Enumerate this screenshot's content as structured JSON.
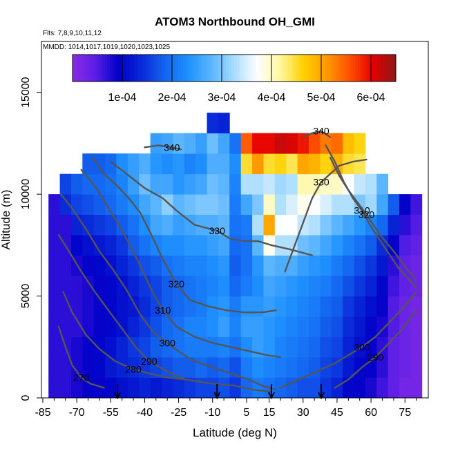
{
  "chart_data": {
    "type": "heatmap",
    "title": "ATOM3 Northbound OH_GMI",
    "subtitle_flights": "Flts: 7,8,9,10,11,12",
    "subtitle_dates": "MMDD: 1014,1017,1019,1020,1023,1025",
    "xlabel": "Latitude (deg N)",
    "ylabel": "Altitude (m)",
    "xlim": [
      -85,
      85
    ],
    "ylim": [
      0,
      17500
    ],
    "x_ticks": [
      -85,
      -70,
      -55,
      -40,
      -25,
      -10,
      5,
      15,
      30,
      45,
      60,
      75
    ],
    "y_ticks": [
      0,
      5000,
      10000,
      15000
    ],
    "colorbar": {
      "min": 0,
      "max": 0.00065,
      "ticks": [
        0.0001,
        0.0002,
        0.0003,
        0.0004,
        0.0005,
        0.0006
      ],
      "tick_labels": [
        "1e-04",
        "2e-04",
        "3e-04",
        "4e-04",
        "5e-04",
        "6e-04"
      ],
      "colors": [
        "#8a2be2",
        "#5a1ee6",
        "#0000c8",
        "#0a2ad8",
        "#1464f0",
        "#1e90ff",
        "#5ab4ff",
        "#a8dcff",
        "#ffffff",
        "#fff7a0",
        "#ffd000",
        "#ff9a00",
        "#ff5000",
        "#e60000",
        "#8b1a1a"
      ]
    },
    "heatmap": {
      "lat_bins": [
        -80,
        -75,
        -70,
        -65,
        -60,
        -55,
        -50,
        -45,
        -40,
        -35,
        -30,
        -25,
        -20,
        -15,
        -10,
        -5,
        0,
        5,
        10,
        15,
        20,
        25,
        30,
        35,
        40,
        45,
        50,
        55,
        60,
        65,
        70,
        75,
        80
      ],
      "alt_bins_km": [
        0.5,
        1.5,
        2.5,
        3.5,
        4.5,
        5.5,
        6.5,
        7.5,
        8.5,
        9.5,
        10.5,
        11.5,
        12.5,
        13.5
      ],
      "values_1e4": [
        [
          0.7,
          0.7,
          0.7,
          0.7,
          0.7,
          0.7,
          0.7,
          0.7,
          0.7,
          0.7,
          null,
          null,
          null,
          null
        ],
        [
          0.7,
          0.7,
          0.7,
          0.7,
          0.7,
          0.7,
          0.7,
          0.7,
          0.7,
          1.4,
          1.6,
          null,
          null,
          null
        ],
        [
          0.8,
          0.8,
          0.8,
          0.7,
          0.7,
          0.7,
          0.8,
          1.0,
          1.3,
          1.6,
          1.8,
          null,
          null,
          null
        ],
        [
          0.9,
          0.9,
          0.9,
          0.8,
          0.8,
          0.8,
          0.9,
          1.1,
          1.4,
          1.7,
          1.9,
          1.8,
          null,
          null
        ],
        [
          0.9,
          1.0,
          1.0,
          0.9,
          0.9,
          0.9,
          1.0,
          1.2,
          1.5,
          1.8,
          1.9,
          1.8,
          null,
          null
        ],
        [
          1.0,
          1.2,
          1.1,
          1.0,
          1.0,
          1.0,
          1.1,
          1.3,
          1.6,
          1.9,
          2.0,
          1.9,
          null,
          null
        ],
        [
          1.1,
          1.3,
          1.3,
          1.1,
          1.1,
          1.1,
          1.3,
          1.5,
          1.8,
          2.1,
          2.2,
          2.3,
          null,
          null
        ],
        [
          1.2,
          1.4,
          1.5,
          1.3,
          1.2,
          1.3,
          1.5,
          1.8,
          2.0,
          2.3,
          2.5,
          2.5,
          null,
          null
        ],
        [
          1.3,
          1.5,
          1.6,
          1.5,
          1.4,
          1.5,
          1.7,
          2.0,
          2.3,
          2.6,
          2.9,
          2.7,
          null,
          null
        ],
        [
          1.2,
          1.6,
          1.8,
          1.7,
          1.6,
          1.6,
          1.8,
          2.2,
          2.6,
          2.8,
          2.6,
          2.4,
          2.5,
          null
        ],
        [
          1.3,
          1.7,
          1.9,
          1.9,
          1.8,
          1.8,
          2.0,
          2.3,
          2.7,
          3.1,
          2.6,
          2.3,
          2.6,
          null
        ],
        [
          1.4,
          1.8,
          2.0,
          2.0,
          1.9,
          1.9,
          2.1,
          2.3,
          2.5,
          2.8,
          2.4,
          2.4,
          2.8,
          null
        ],
        [
          1.5,
          1.8,
          2.1,
          2.2,
          2.0,
          2.0,
          2.2,
          2.4,
          2.6,
          2.9,
          2.5,
          2.2,
          2.7,
          null
        ],
        [
          1.6,
          1.9,
          2.1,
          2.2,
          2.1,
          2.1,
          2.2,
          2.4,
          2.7,
          3.0,
          2.6,
          2.3,
          2.5,
          null
        ],
        [
          1.6,
          1.8,
          2.1,
          2.3,
          2.3,
          2.2,
          2.3,
          2.5,
          2.7,
          3.0,
          2.9,
          2.7,
          2.9,
          1.4
        ],
        [
          1.7,
          1.9,
          2.2,
          2.5,
          2.4,
          2.3,
          2.4,
          2.6,
          2.8,
          2.9,
          2.8,
          2.7,
          2.6,
          1.3
        ],
        [
          1.5,
          1.7,
          2.0,
          2.2,
          2.1,
          1.9,
          1.8,
          1.9,
          2.0,
          2.1,
          2.2,
          2.3,
          2.0,
          null
        ],
        [
          1.9,
          2.1,
          2.3,
          2.5,
          2.4,
          2.1,
          2.0,
          2.0,
          2.1,
          2.6,
          3.3,
          4.5,
          5.5,
          null
        ],
        [
          2.1,
          2.3,
          2.5,
          2.5,
          2.4,
          2.3,
          2.4,
          2.8,
          3.3,
          3.0,
          3.3,
          5.1,
          6.0,
          null
        ],
        [
          2.0,
          2.2,
          2.4,
          2.4,
          2.5,
          2.6,
          2.8,
          3.8,
          5.0,
          4.0,
          3.4,
          4.5,
          6.0,
          null
        ],
        [
          1.9,
          2.1,
          2.2,
          2.3,
          2.4,
          2.5,
          2.7,
          3.3,
          3.7,
          3.3,
          3.2,
          4.6,
          6.2,
          null
        ],
        [
          1.8,
          2.0,
          2.1,
          2.2,
          2.3,
          2.4,
          2.7,
          3.3,
          3.7,
          3.5,
          3.3,
          4.4,
          6.1,
          null
        ],
        [
          1.7,
          1.9,
          2.0,
          2.1,
          2.2,
          2.3,
          2.5,
          2.9,
          3.4,
          3.8,
          4.1,
          5.0,
          5.9,
          null
        ],
        [
          1.7,
          1.8,
          1.9,
          2.0,
          2.1,
          2.2,
          2.4,
          2.8,
          3.3,
          3.7,
          4.1,
          4.9,
          5.6,
          null
        ],
        [
          1.5,
          1.6,
          1.7,
          1.8,
          1.9,
          2.1,
          2.3,
          2.6,
          3.0,
          3.5,
          4.0,
          4.6,
          5.3,
          null
        ],
        [
          1.3,
          1.5,
          1.6,
          1.7,
          1.8,
          1.9,
          2.1,
          2.4,
          2.8,
          3.3,
          4.0,
          4.9,
          5.4,
          null
        ],
        [
          1.0,
          1.2,
          1.3,
          1.4,
          1.5,
          1.7,
          1.9,
          2.2,
          2.6,
          3.3,
          3.7,
          4.5,
          4.8,
          null
        ],
        [
          0.9,
          1.0,
          1.1,
          1.2,
          1.3,
          1.5,
          1.7,
          2.0,
          2.4,
          3.0,
          3.4,
          4.4,
          4.6,
          null
        ],
        [
          0.8,
          0.9,
          0.9,
          1.0,
          1.1,
          1.3,
          1.5,
          1.8,
          2.2,
          3.2,
          3.3,
          null,
          null,
          null
        ],
        [
          0.6,
          0.7,
          0.7,
          0.8,
          0.9,
          1.0,
          1.2,
          1.4,
          1.9,
          2.6,
          2.8,
          null,
          null,
          null
        ],
        [
          0.4,
          0.4,
          0.4,
          0.5,
          0.5,
          0.6,
          0.7,
          0.9,
          1.3,
          1.8,
          null,
          null,
          null,
          null
        ],
        [
          0.2,
          0.3,
          0.3,
          0.3,
          0.3,
          0.4,
          0.4,
          0.5,
          0.7,
          0.9,
          null,
          null,
          null,
          null
        ],
        [
          0.2,
          0.2,
          0.2,
          0.2,
          0.2,
          0.3,
          0.3,
          0.4,
          0.5,
          0.6,
          null,
          null,
          null,
          null
        ]
      ]
    },
    "contours": [
      {
        "label": "270",
        "points": [
          [
            -78,
            3500
          ],
          [
            -75,
            2500
          ],
          [
            -72,
            1600
          ],
          [
            -68,
            1000
          ],
          [
            -64,
            700
          ],
          [
            -58,
            500
          ]
        ]
      },
      {
        "label": "280",
        "points": [
          [
            -76,
            5200
          ],
          [
            -72,
            4200
          ],
          [
            -66,
            3100
          ],
          [
            -60,
            2400
          ],
          [
            -53,
            1800
          ],
          [
            -45,
            1400
          ],
          [
            -38,
            1200
          ],
          [
            -30,
            1000
          ],
          [
            -22,
            900
          ],
          [
            -15,
            800
          ]
        ]
      },
      {
        "label": "290",
        "points": [
          [
            -78,
            8000
          ],
          [
            -74,
            7300
          ],
          [
            -68,
            6200
          ],
          [
            -62,
            5200
          ],
          [
            -56,
            4300
          ],
          [
            -50,
            3400
          ],
          [
            -44,
            2500
          ],
          [
            -38,
            1800
          ],
          [
            -30,
            1300
          ],
          [
            -22,
            900
          ],
          [
            -10,
            700
          ],
          [
            0,
            600
          ],
          [
            8,
            400
          ],
          [
            16,
            300
          ]
        ]
      },
      {
        "label": "300",
        "points": [
          [
            -77,
            10000
          ],
          [
            -72,
            9300
          ],
          [
            -66,
            8300
          ],
          [
            -60,
            7200
          ],
          [
            -54,
            6300
          ],
          [
            -48,
            5300
          ],
          [
            -42,
            4100
          ],
          [
            -36,
            3200
          ],
          [
            -30,
            2700
          ],
          [
            -24,
            2200
          ],
          [
            -18,
            1800
          ],
          [
            -10,
            1500
          ],
          [
            -2,
            1200
          ],
          [
            6,
            900
          ],
          [
            12,
            600
          ],
          [
            18,
            400
          ]
        ]
      },
      {
        "label": "310",
        "points": [
          [
            -68,
            11200
          ],
          [
            -62,
            10400
          ],
          [
            -57,
            9500
          ],
          [
            -52,
            8600
          ],
          [
            -47,
            7600
          ],
          [
            -42,
            6500
          ],
          [
            -37,
            5300
          ],
          [
            -32,
            4300
          ],
          [
            -26,
            3500
          ],
          [
            -18,
            3000
          ],
          [
            -10,
            2700
          ],
          [
            -2,
            2500
          ],
          [
            6,
            2300
          ],
          [
            14,
            2100
          ],
          [
            20,
            2000
          ]
        ]
      },
      {
        "label": "320",
        "points": [
          [
            -63,
            11800
          ],
          [
            -58,
            11000
          ],
          [
            -52,
            10400
          ],
          [
            -47,
            9800
          ],
          [
            -42,
            9100
          ],
          [
            -37,
            8000
          ],
          [
            -32,
            6800
          ],
          [
            -26,
            5600
          ],
          [
            -20,
            4800
          ],
          [
            -12,
            4500
          ],
          [
            -4,
            4300
          ],
          [
            4,
            4200
          ],
          [
            12,
            4200
          ],
          [
            18,
            4300
          ]
        ]
      },
      {
        "label": "330",
        "points": [
          [
            -55,
            11600
          ],
          [
            -48,
            11000
          ],
          [
            -40,
            10300
          ],
          [
            -32,
            9800
          ],
          [
            -26,
            9200
          ],
          [
            -18,
            8500
          ],
          [
            -8,
            8200
          ],
          [
            -2,
            7800
          ],
          [
            4,
            7700
          ],
          [
            10,
            7700
          ],
          [
            16,
            7500
          ],
          [
            24,
            7300
          ],
          [
            34,
            7000
          ]
        ]
      },
      {
        "label": "340",
        "points": [
          [
            -40,
            12300
          ],
          [
            -34,
            12400
          ],
          [
            -28,
            12300
          ],
          [
            -24,
            12200
          ]
        ]
      },
      {
        "label": "300",
        "points": [
          [
            20,
            500
          ],
          [
            28,
            900
          ],
          [
            36,
            1300
          ],
          [
            44,
            1700
          ],
          [
            50,
            2100
          ],
          [
            56,
            2500
          ],
          [
            62,
            3000
          ],
          [
            68,
            3700
          ],
          [
            74,
            4400
          ],
          [
            80,
            5200
          ]
        ]
      },
      {
        "label": "290",
        "points": [
          [
            44,
            500
          ],
          [
            50,
            900
          ],
          [
            56,
            1500
          ],
          [
            62,
            2000
          ],
          [
            68,
            2700
          ],
          [
            74,
            3400
          ],
          [
            80,
            4300
          ]
        ]
      },
      {
        "label": "310",
        "points": [
          [
            40,
            12400
          ],
          [
            44,
            11600
          ],
          [
            48,
            10600
          ],
          [
            52,
            9800
          ],
          [
            56,
            9200
          ],
          [
            60,
            8400
          ],
          [
            66,
            7400
          ],
          [
            72,
            6400
          ],
          [
            80,
            5400
          ]
        ]
      },
      {
        "label": "320",
        "points": [
          [
            42,
            11800
          ],
          [
            46,
            10900
          ],
          [
            50,
            10200
          ],
          [
            54,
            9600
          ],
          [
            58,
            9000
          ],
          [
            64,
            8000
          ],
          [
            70,
            7200
          ],
          [
            76,
            6300
          ],
          [
            80,
            5800
          ]
        ]
      },
      {
        "label": "330",
        "points": [
          [
            22,
            6200
          ],
          [
            26,
            7400
          ],
          [
            30,
            8600
          ],
          [
            34,
            9800
          ],
          [
            38,
            10600
          ],
          [
            42,
            11000
          ],
          [
            46,
            11400
          ],
          [
            52,
            11600
          ],
          [
            58,
            11700
          ]
        ]
      },
      {
        "label": "340",
        "points": [
          [
            30,
            12800
          ],
          [
            34,
            13000
          ],
          [
            38,
            13100
          ],
          [
            42,
            12800
          ]
        ]
      }
    ],
    "arrow_latitudes": [
      -52,
      -8,
      16,
      38
    ]
  }
}
